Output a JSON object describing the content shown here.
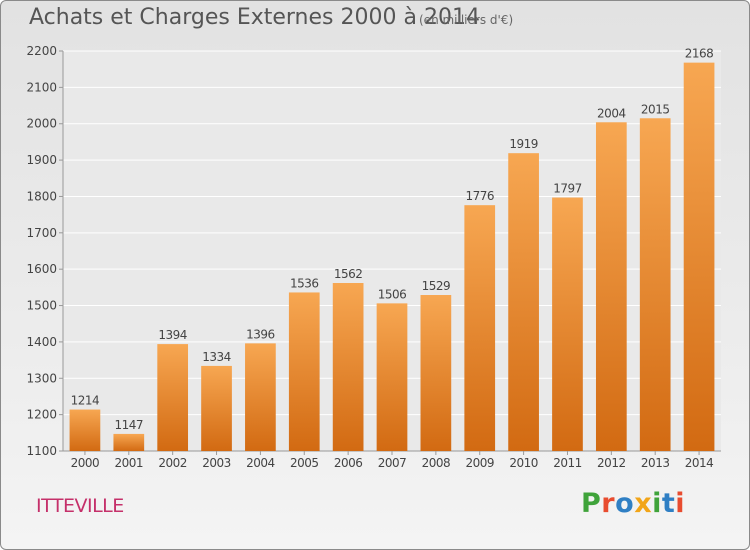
{
  "chart_data": {
    "type": "bar",
    "title": "Achats et Charges Externes 2000 à 2014",
    "subtitle": "(en milliers d'€)",
    "categories": [
      "2000",
      "2001",
      "2002",
      "2003",
      "2004",
      "2005",
      "2006",
      "2007",
      "2008",
      "2009",
      "2010",
      "2011",
      "2012",
      "2013",
      "2014"
    ],
    "values": [
      1214,
      1147,
      1394,
      1334,
      1396,
      1536,
      1562,
      1506,
      1529,
      1776,
      1919,
      1797,
      2004,
      2015,
      2168
    ],
    "ylim": [
      1100,
      2200
    ],
    "yticks": [
      1100,
      1200,
      1300,
      1400,
      1500,
      1600,
      1700,
      1800,
      1900,
      2000,
      2100,
      2200
    ],
    "grid": true,
    "bar_color": "#f08a30"
  },
  "footer": {
    "place": "ITTEVILLE",
    "logo": "Proxiti",
    "logo_colors": [
      "#3fa33a",
      "#e84c2f",
      "#2f7fc4",
      "#f2a518",
      "#3fa33a",
      "#2f7fc4",
      "#e84c2f"
    ]
  }
}
